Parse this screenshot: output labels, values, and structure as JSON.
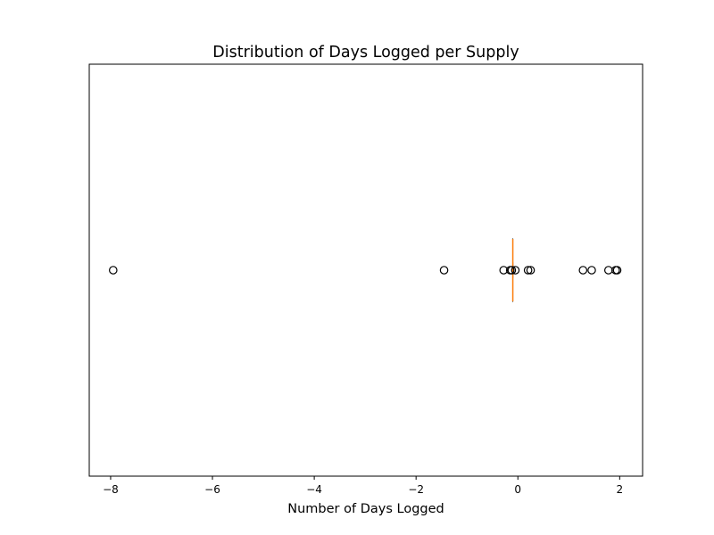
{
  "chart_data": {
    "type": "boxplot",
    "orientation": "horizontal",
    "title": "Distribution of Days Logged per Supply",
    "xlabel": "Number of Days Logged",
    "ylabel": "",
    "xlim": [
      -8.42,
      2.45
    ],
    "xticks": [
      -8,
      -6,
      -4,
      -2,
      0,
      2
    ],
    "xtick_labels": [
      "−8",
      "−6",
      "−4",
      "−2",
      "0",
      "2"
    ],
    "yticks": [],
    "grid": false,
    "box": {
      "q1": -0.1,
      "median": -0.1,
      "q3": -0.1,
      "whisker_low": -0.1,
      "whisker_high": -0.1
    },
    "outliers": [
      -7.95,
      -1.45,
      -0.28,
      -0.15,
      -0.12,
      -0.05,
      0.2,
      0.25,
      1.28,
      1.45,
      1.78,
      1.92,
      1.95
    ],
    "colors": {
      "median": "#ff7f0e",
      "outlier_edge": "#000000",
      "box": "#000000"
    }
  }
}
